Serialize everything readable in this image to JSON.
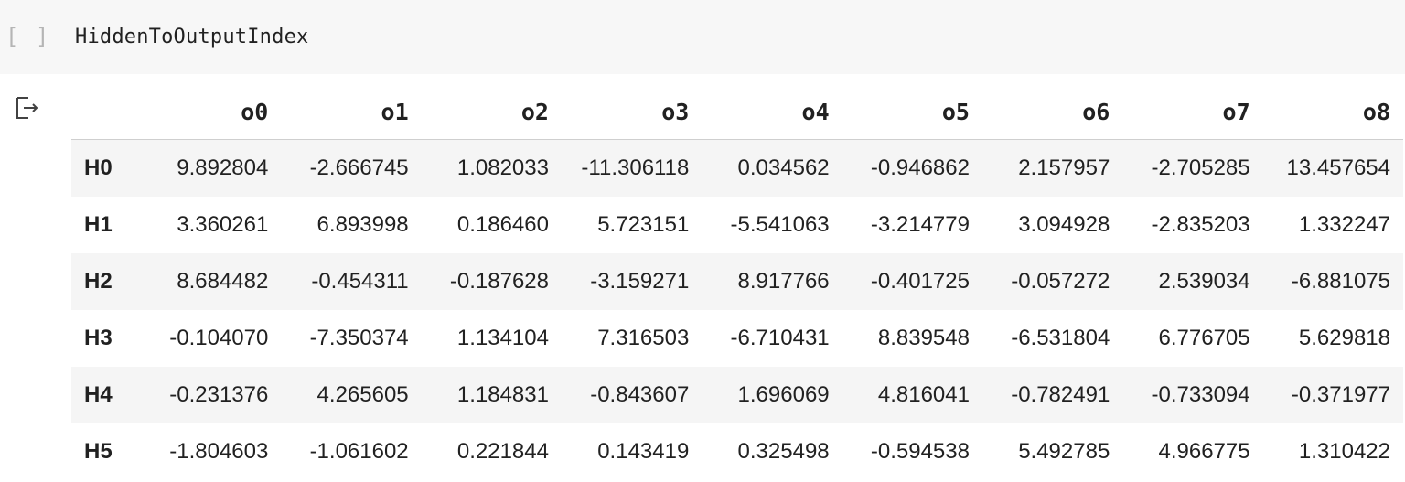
{
  "cell": {
    "run_indicator": "[ ]",
    "code": "HiddenToOutputIndex"
  },
  "output": {
    "icon": "output-arrow-icon",
    "columns": [
      "o0",
      "o1",
      "o2",
      "o3",
      "o4",
      "o5",
      "o6",
      "o7",
      "o8"
    ],
    "rows": [
      {
        "index": "H0",
        "values": [
          "9.892804",
          "-2.666745",
          "1.082033",
          "-11.306118",
          "0.034562",
          "-0.946862",
          "2.157957",
          "-2.705285",
          "13.457654"
        ]
      },
      {
        "index": "H1",
        "values": [
          "3.360261",
          "6.893998",
          "0.186460",
          "5.723151",
          "-5.541063",
          "-3.214779",
          "3.094928",
          "-2.835203",
          "1.332247"
        ]
      },
      {
        "index": "H2",
        "values": [
          "8.684482",
          "-0.454311",
          "-0.187628",
          "-3.159271",
          "8.917766",
          "-0.401725",
          "-0.057272",
          "2.539034",
          "-6.881075"
        ]
      },
      {
        "index": "H3",
        "values": [
          "-0.104070",
          "-7.350374",
          "1.134104",
          "7.316503",
          "-6.710431",
          "8.839548",
          "-6.531804",
          "6.776705",
          "5.629818"
        ]
      },
      {
        "index": "H4",
        "values": [
          "-0.231376",
          "4.265605",
          "1.184831",
          "-0.843607",
          "1.696069",
          "4.816041",
          "-0.782491",
          "-0.733094",
          "-0.371977"
        ]
      },
      {
        "index": "H5",
        "values": [
          "-1.804603",
          "-1.061602",
          "0.221844",
          "0.143419",
          "0.325498",
          "-0.594538",
          "5.492785",
          "4.966775",
          "1.310422"
        ]
      }
    ]
  }
}
